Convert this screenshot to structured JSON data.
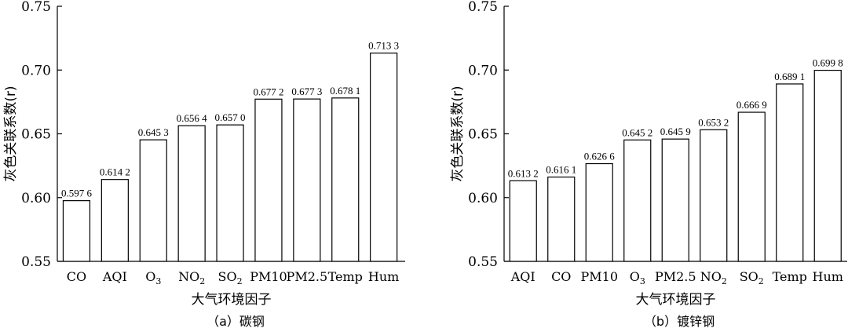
{
  "chart_data": [
    {
      "type": "bar",
      "caption": "（a）碳钢",
      "xlabel": "大气环境因子",
      "ylabel": "灰色关联系数(r)",
      "ylim": [
        0.55,
        0.75
      ],
      "yticks": [
        "0.55",
        "0.60",
        "0.65",
        "0.70",
        "0.75"
      ],
      "categories": [
        {
          "main": "CO",
          "sub": ""
        },
        {
          "main": "AQI",
          "sub": ""
        },
        {
          "main": "O",
          "sub": "3"
        },
        {
          "main": "NO",
          "sub": "2"
        },
        {
          "main": "SO",
          "sub": "2"
        },
        {
          "main": "PM10",
          "sub": ""
        },
        {
          "main": "PM2.5",
          "sub": ""
        },
        {
          "main": "Temp",
          "sub": ""
        },
        {
          "main": "Hum",
          "sub": ""
        }
      ],
      "values": [
        0.5976,
        0.6142,
        0.6453,
        0.6564,
        0.657,
        0.6772,
        0.6773,
        0.6781,
        0.7133
      ],
      "value_labels": [
        "0.597 6",
        "0.614 2",
        "0.645 3",
        "0.656 4",
        "0.657 0",
        "0.677 2",
        "0.677 3",
        "0.678 1",
        "0.713 3"
      ]
    },
    {
      "type": "bar",
      "caption": "（b）镀锌钢",
      "xlabel": "大气环境因子",
      "ylabel": "灰色关联系数(r)",
      "ylim": [
        0.55,
        0.75
      ],
      "yticks": [
        "0.55",
        "0.60",
        "0.65",
        "0.70",
        "0.75"
      ],
      "categories": [
        {
          "main": "AQI",
          "sub": ""
        },
        {
          "main": "CO",
          "sub": ""
        },
        {
          "main": "PM10",
          "sub": ""
        },
        {
          "main": "O",
          "sub": "3"
        },
        {
          "main": "PM2.5",
          "sub": ""
        },
        {
          "main": "NO",
          "sub": "2"
        },
        {
          "main": "SO",
          "sub": "2"
        },
        {
          "main": "Temp",
          "sub": ""
        },
        {
          "main": "Hum",
          "sub": ""
        }
      ],
      "values": [
        0.6132,
        0.6161,
        0.6266,
        0.6452,
        0.6459,
        0.6532,
        0.6669,
        0.6891,
        0.6998
      ],
      "value_labels": [
        "0.613 2",
        "0.616 1",
        "0.626 6",
        "0.645 2",
        "0.645 9",
        "0.653 2",
        "0.666 9",
        "0.689 1",
        "0.699 8"
      ]
    }
  ]
}
